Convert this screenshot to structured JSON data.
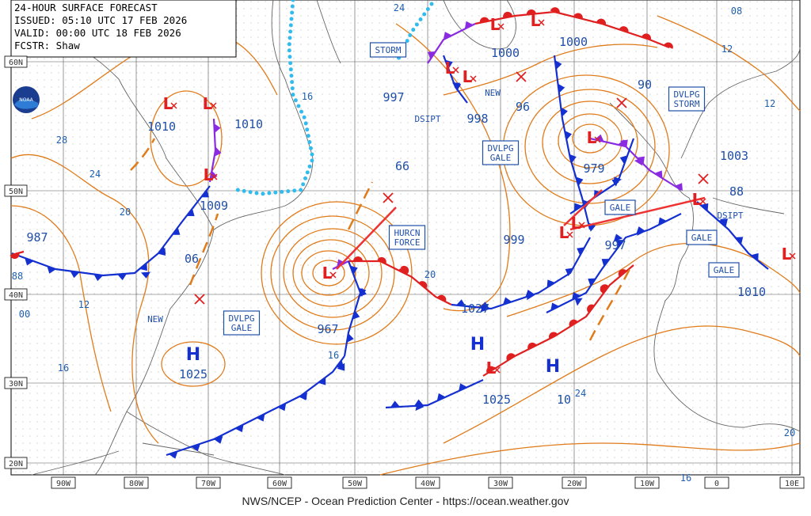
{
  "header": {
    "lines": [
      "24-HOUR SURFACE FORECAST",
      "ISSUED: 05:10 UTC 17 FEB 2026",
      "VALID:  00:00 UTC 18 FEB 2026",
      "FCSTR:  Shaw"
    ]
  },
  "map": {
    "lat_labels": [
      "60N",
      "50N",
      "40N",
      "30N",
      "20N"
    ],
    "lon_labels": [
      "90W",
      "80W",
      "70W",
      "60W",
      "50W",
      "40W",
      "30W",
      "20W",
      "10W",
      "0",
      "10E"
    ],
    "boxed_labels": [
      [
        "STORM"
      ],
      [
        "DVLPG",
        "GALE"
      ],
      [
        "HURCN",
        "FORCE"
      ],
      [
        "DVLPG",
        "GALE"
      ],
      [
        "DVLPG",
        "STORM"
      ],
      [
        "GALE"
      ],
      [
        "GALE"
      ],
      [
        "GALE"
      ]
    ],
    "plain_labels": [
      "DSIPT",
      "NEW",
      "DSIPT",
      "NEW"
    ],
    "pressure_labels": [
      "1010",
      "1010",
      "1009",
      "987",
      "06",
      "1025",
      "967",
      "997",
      "998",
      "1000",
      "1000",
      "96",
      "90",
      "979",
      "1003",
      "88",
      "999",
      "997",
      "1027",
      "1025",
      "10",
      "1010",
      "66"
    ],
    "isobar_labels": [
      "24",
      "08",
      "12",
      "12",
      "16",
      "28",
      "24",
      "20",
      "88",
      "00",
      "12",
      "16",
      "16",
      "20",
      "20",
      "16",
      "24"
    ],
    "highs": [
      "H",
      "H",
      "H"
    ],
    "lows": [
      "L",
      "L",
      "L",
      "L",
      "L",
      "L",
      "L",
      "L",
      "L",
      "L",
      "L",
      "L",
      "L",
      "L"
    ]
  },
  "footer": "NWS/NCEP - Ocean Prediction Center - https://ocean.weather.gov"
}
